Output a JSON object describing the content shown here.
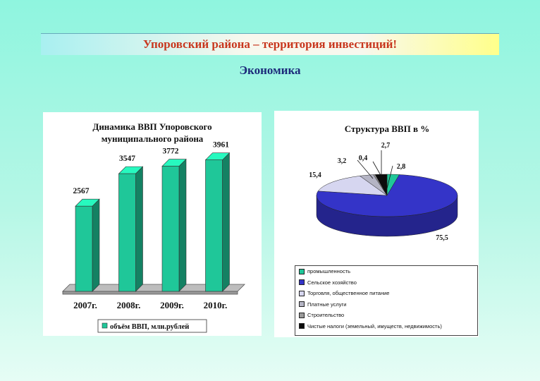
{
  "header": {
    "title": "Упоровский района – территория инвестиций!",
    "subtitle": "Экономика"
  },
  "chart_data": [
    {
      "type": "bar",
      "title": "Динамика ВВП Упоровского муниципального района",
      "title_lines": [
        "Динамика ВВП Упоровского",
        "муниципального района"
      ],
      "categories": [
        "2007г.",
        "2008г.",
        "2009г.",
        "2010г."
      ],
      "series": [
        {
          "name": "объём ВВП, млн.рублей",
          "values": [
            2567,
            3547,
            3772,
            3961
          ]
        }
      ],
      "value_labels": [
        "2567",
        "3547",
        "3772",
        "3961"
      ],
      "ylim": [
        0,
        4400
      ],
      "grid": false,
      "legend": "bottom",
      "color": "#1fc799"
    },
    {
      "type": "pie",
      "title": "Структура ВВП в %",
      "labels": [
        "промышленность",
        "Сельское хозяйство",
        "Торговля, общественное питание",
        "Платные услуги",
        "Строительство",
        "Чистые налоги (земельный, имуществ, недвижимость)"
      ],
      "values": [
        2.8,
        75.5,
        15.4,
        3.2,
        0.4,
        2.7
      ],
      "value_labels": [
        "2,8",
        "75,5",
        "15,4",
        "3,2",
        "0,4",
        "2,7"
      ],
      "colors": [
        "#1fc799",
        "#3434c8",
        "#d6d6f0",
        "#b4b4c4",
        "#9a9a9a",
        "#0c0c0c"
      ],
      "legend": "bottom"
    }
  ]
}
